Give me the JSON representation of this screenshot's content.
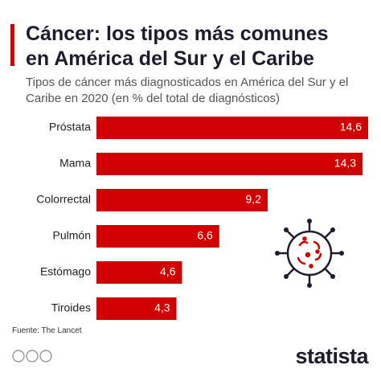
{
  "chart_data": {
    "type": "bar",
    "orientation": "horizontal",
    "title": "Cáncer: los tipos más comunes en América del Sur y el Caribe",
    "subtitle": "Tipos de cáncer más diagnosticados en América del Sur y el Caribe en 2020 (en % del total de diagnósticos)",
    "categories": [
      "Próstata",
      "Mama",
      "Colorrectal",
      "Pulmón",
      "Estómago",
      "Tiroides"
    ],
    "values": [
      14.6,
      14.3,
      9.2,
      6.6,
      4.6,
      4.3
    ],
    "value_labels": [
      "14,6",
      "14,3",
      "9,2",
      "6,6",
      "4,6",
      "4,3"
    ],
    "color": "#d00000",
    "source": "Fuente: The Lancet",
    "brand": "statista"
  }
}
